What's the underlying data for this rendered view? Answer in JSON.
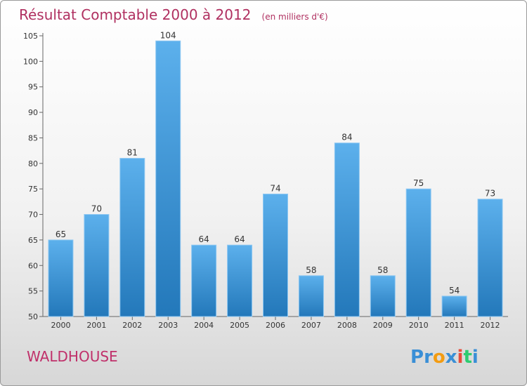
{
  "chart_data": {
    "type": "bar",
    "title": "Résultat Comptable 2000 à 2012",
    "subtitle": "(en milliers d'€)",
    "categories": [
      "2000",
      "2001",
      "2002",
      "2003",
      "2004",
      "2005",
      "2006",
      "2007",
      "2008",
      "2009",
      "2010",
      "2011",
      "2012"
    ],
    "values": [
      65,
      70,
      81,
      104,
      64,
      64,
      74,
      58,
      84,
      58,
      75,
      54,
      73
    ],
    "yticks": [
      50,
      55,
      60,
      65,
      70,
      75,
      80,
      85,
      90,
      95,
      100,
      105
    ],
    "ylim": [
      50,
      105
    ],
    "grid": false,
    "xlabel": "",
    "ylabel": ""
  },
  "labels": {
    "place": "WALDHOUSE"
  },
  "logo": {
    "letters": [
      "P",
      "r",
      "o",
      "x",
      "i",
      "t",
      "i"
    ],
    "colors": [
      "#3a8fd6",
      "#3a8fd6",
      "#f39c12",
      "#3a8fd6",
      "#e74c3c",
      "#2ecc71",
      "#3a8fd6"
    ]
  },
  "colors": {
    "bar_light": "#5cb0ec",
    "bar_dark": "#2378ba",
    "title": "#b03060"
  }
}
